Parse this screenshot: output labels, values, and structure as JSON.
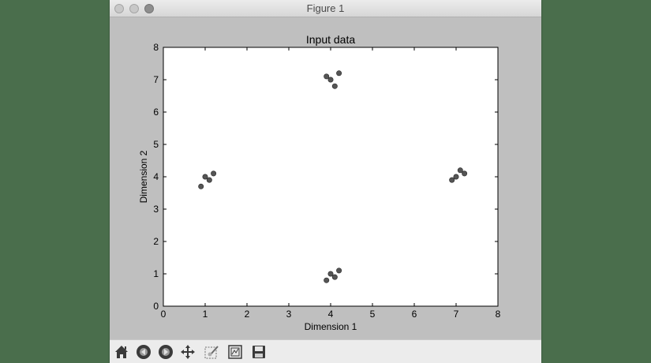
{
  "window": {
    "title": "Figure 1"
  },
  "toolbar": {
    "buttons": [
      {
        "name": "home",
        "icon": "home-icon"
      },
      {
        "name": "back",
        "icon": "back-arrow-icon"
      },
      {
        "name": "forward",
        "icon": "forward-arrow-icon"
      },
      {
        "name": "pan",
        "icon": "move-arrows-icon"
      },
      {
        "name": "zoom",
        "icon": "zoom-rect-icon"
      },
      {
        "name": "configure-subplots",
        "icon": "subplots-icon"
      },
      {
        "name": "save",
        "icon": "floppy-disk-icon"
      }
    ]
  },
  "chart_data": {
    "type": "scatter",
    "title": "Input data",
    "xlabel": "Dimension 1",
    "ylabel": "Dimension 2",
    "xlim": [
      0,
      8
    ],
    "ylim": [
      0,
      8
    ],
    "xticks": [
      "0",
      "1",
      "2",
      "3",
      "4",
      "5",
      "6",
      "7",
      "8"
    ],
    "yticks": [
      "0",
      "1",
      "2",
      "3",
      "4",
      "5",
      "6",
      "7",
      "8"
    ],
    "grid": false,
    "marker_color": "#555555",
    "points": [
      {
        "x": 3.9,
        "y": 7.1
      },
      {
        "x": 4.0,
        "y": 7.0
      },
      {
        "x": 4.1,
        "y": 6.8
      },
      {
        "x": 4.2,
        "y": 7.2
      },
      {
        "x": 0.9,
        "y": 3.7
      },
      {
        "x": 1.0,
        "y": 4.0
      },
      {
        "x": 1.1,
        "y": 3.9
      },
      {
        "x": 1.2,
        "y": 4.1
      },
      {
        "x": 6.9,
        "y": 3.9
      },
      {
        "x": 7.0,
        "y": 4.0
      },
      {
        "x": 7.1,
        "y": 4.2
      },
      {
        "x": 7.2,
        "y": 4.1
      },
      {
        "x": 3.9,
        "y": 0.8
      },
      {
        "x": 4.0,
        "y": 1.0
      },
      {
        "x": 4.1,
        "y": 0.9
      },
      {
        "x": 4.2,
        "y": 1.1
      }
    ]
  }
}
